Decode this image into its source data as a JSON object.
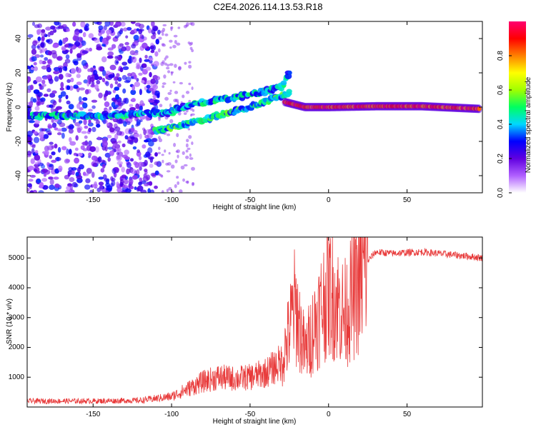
{
  "title": "C2E4.2026.114.13.53.R18",
  "chart_data": [
    {
      "type": "heatmap",
      "xlabel": "Height of straight line (km)",
      "ylabel": "Frequency (Hz)",
      "xlim": [
        -192,
        98
      ],
      "ylim": [
        -50,
        50
      ],
      "xticks": [
        -150,
        -100,
        -50,
        0,
        50
      ],
      "yticks": [
        -40,
        -20,
        0,
        20,
        40
      ],
      "colorbar": {
        "label": "Normalized spectral amplitude",
        "range": [
          0,
          1
        ],
        "ticks": [
          0.0,
          0.2,
          0.4,
          0.6,
          0.8
        ],
        "tick_labels": [
          "0.0",
          "0.2",
          "0.4",
          "0.6",
          "0.8"
        ],
        "colors": [
          "#ffffff",
          "#b060ff",
          "#6000e0",
          "#0000ff",
          "#00d8ff",
          "#00ff60",
          "#a0ff00",
          "#ffff00",
          "#ff8000",
          "#ff0000",
          "#ff0070"
        ]
      },
      "features": [
        {
          "name": "noise",
          "x_range": [
            -192,
            -108
          ],
          "y_range": [
            -50,
            50
          ],
          "amplitude": 0.25
        },
        {
          "name": "lower-branch",
          "points": [
            [
              -192,
              -5
            ],
            [
              -150,
              -5
            ],
            [
              -120,
              -4
            ],
            [
              -100,
              -3
            ]
          ],
          "amplitude": 0.4
        },
        {
          "name": "rising-branch",
          "points": [
            [
              -110,
              -14
            ],
            [
              -90,
              -10
            ],
            [
              -70,
              -5
            ],
            [
              -50,
              0
            ],
            [
              -35,
              5
            ],
            [
              -25,
              8
            ]
          ],
          "amplitude": 0.45
        },
        {
          "name": "upper-branch",
          "points": [
            [
              -105,
              -3
            ],
            [
              -85,
              2
            ],
            [
              -65,
              5
            ],
            [
              -45,
              8
            ],
            [
              -30,
              12
            ],
            [
              -25,
              20
            ]
          ],
          "amplitude": 0.4
        },
        {
          "name": "main-line",
          "points": [
            [
              -28,
              3
            ],
            [
              -15,
              0
            ],
            [
              0,
              0
            ],
            [
              30,
              0.5
            ],
            [
              60,
              0.5
            ],
            [
              96,
              -1
            ]
          ],
          "amplitude": 0.95
        }
      ]
    },
    {
      "type": "line",
      "xlabel": "Height of straight line (km)",
      "ylabel": "SNR (10 * v/v)",
      "xlim": [
        -192,
        98
      ],
      "ylim": [
        0,
        5700
      ],
      "xticks": [
        -150,
        -100,
        -50,
        0,
        50
      ],
      "yticks": [
        1000,
        2000,
        3000,
        4000,
        5000
      ],
      "color": "#e83a3a",
      "series": [
        {
          "name": "SNR",
          "x": [
            -192,
            -150,
            -120,
            -100,
            -90,
            -80,
            -70,
            -60,
            -50,
            -40,
            -30,
            -25,
            -22,
            -20,
            -15,
            -10,
            -5,
            0,
            10,
            20,
            25,
            30,
            40,
            50,
            60,
            70,
            80,
            90,
            98
          ],
          "y": [
            200,
            200,
            220,
            350,
            600,
            850,
            1000,
            950,
            1000,
            1150,
            1500,
            2500,
            3400,
            3100,
            1800,
            2600,
            3300,
            4000,
            3100,
            4200,
            4900,
            5200,
            5150,
            5180,
            5200,
            5150,
            5100,
            5050,
            5000
          ]
        }
      ]
    }
  ]
}
